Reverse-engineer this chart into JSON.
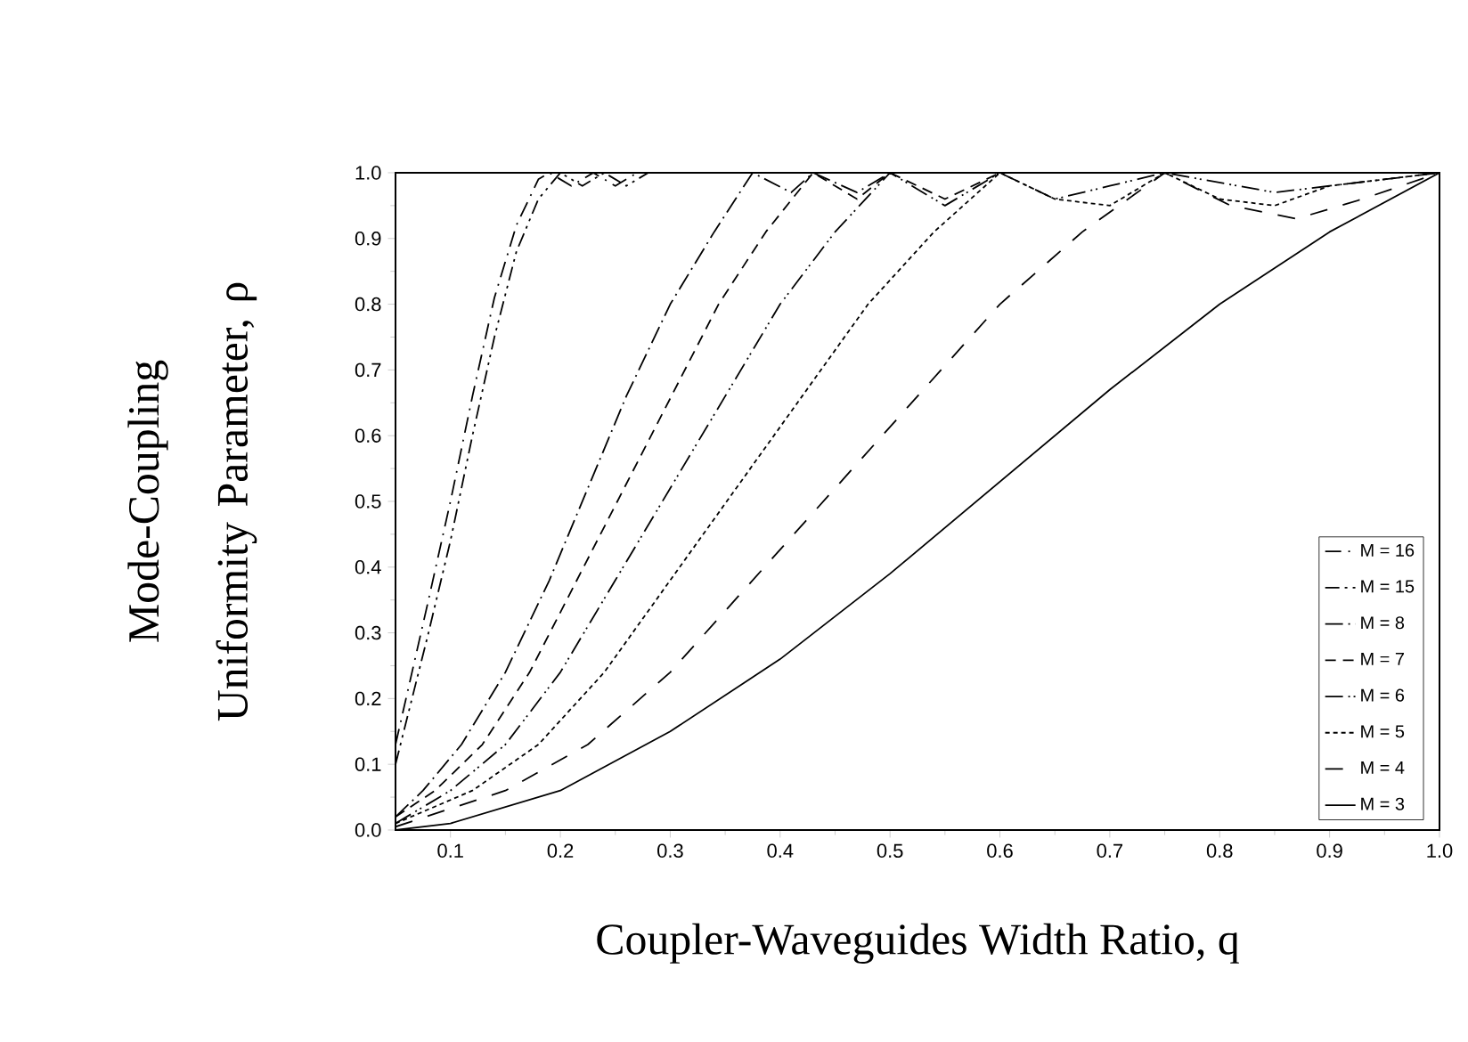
{
  "chart_data": {
    "type": "line",
    "xlabel": "Coupler-Waveguides Width Ratio, q",
    "ylabel": "Mode-Coupling Uniformity Parameter, ρ",
    "xlim": [
      0.05,
      1.0
    ],
    "ylim": [
      0,
      1.0
    ],
    "xticks": [
      0.1,
      0.2,
      0.3,
      0.4,
      0.5,
      0.6,
      0.7,
      0.8,
      0.9,
      {
        "value": 1.0,
        "label": "1.0"
      }
    ],
    "yticks": [
      {
        "value": 0,
        "label": "0.0"
      },
      0.1,
      0.2,
      0.3,
      0.4,
      0.5,
      0.6,
      0.7,
      0.8,
      0.9,
      {
        "value": 1.0,
        "label": "1.0"
      }
    ],
    "grid": false,
    "legend": "bottom right",
    "marker": "none",
    "series": [
      {
        "name": "M = 16",
        "color": "#000000",
        "line_style": "dashdotted",
        "x": [
          0.05,
          0.08,
          0.1,
          0.12,
          0.14,
          0.16,
          0.18,
          0.19,
          0.21,
          0.23,
          0.25,
          0.27,
          1.0
        ],
        "values": [
          0.13,
          0.35,
          0.5,
          0.66,
          0.81,
          0.92,
          0.99,
          1.0,
          0.98,
          1.0,
          0.98,
          1.0,
          1.0
        ]
      },
      {
        "name": "M = 15",
        "color": "#000000",
        "line_style": "dashdotdotted",
        "x": [
          0.05,
          0.08,
          0.1,
          0.12,
          0.14,
          0.16,
          0.18,
          0.2,
          0.22,
          0.24,
          0.26,
          0.28,
          1.0
        ],
        "values": [
          0.1,
          0.3,
          0.44,
          0.6,
          0.75,
          0.88,
          0.96,
          1.0,
          0.98,
          1.0,
          0.98,
          1.0,
          1.0
        ]
      },
      {
        "name": "M = 8",
        "color": "#000000",
        "line_style": "longdashdot",
        "x": [
          0.05,
          0.075,
          0.11,
          0.15,
          0.19,
          0.225,
          0.26,
          0.3,
          0.34,
          0.375,
          0.41,
          0.43,
          0.47,
          0.5,
          1.0
        ],
        "values": [
          0.02,
          0.06,
          0.13,
          0.24,
          0.38,
          0.52,
          0.66,
          0.8,
          0.91,
          1.0,
          0.97,
          1.0,
          0.97,
          1.0,
          1.0
        ]
      },
      {
        "name": "M = 7",
        "color": "#000000",
        "line_style": "dashed",
        "x": [
          0.05,
          0.086,
          0.129,
          0.172,
          0.215,
          0.258,
          0.301,
          0.344,
          0.387,
          0.43,
          0.47,
          0.5,
          0.55,
          0.6,
          1.0
        ],
        "values": [
          0.02,
          0.06,
          0.13,
          0.24,
          0.38,
          0.52,
          0.66,
          0.8,
          0.91,
          1.0,
          0.96,
          1.0,
          0.96,
          1.0,
          1.0
        ]
      },
      {
        "name": "M = 6",
        "color": "#000000",
        "line_style": "longdashdotdot",
        "x": [
          0.05,
          0.1,
          0.15,
          0.2,
          0.25,
          0.3,
          0.35,
          0.4,
          0.45,
          0.5,
          0.55,
          0.6,
          0.65,
          0.7,
          0.75,
          0.85,
          1.0
        ],
        "values": [
          0.01,
          0.06,
          0.13,
          0.24,
          0.38,
          0.52,
          0.66,
          0.8,
          0.91,
          1.0,
          0.95,
          1.0,
          0.96,
          0.98,
          1.0,
          0.97,
          1.0
        ]
      },
      {
        "name": "M = 5",
        "color": "#000000",
        "line_style": "dotted",
        "x": [
          0.05,
          0.12,
          0.18,
          0.24,
          0.3,
          0.36,
          0.42,
          0.48,
          0.54,
          0.6,
          0.65,
          0.7,
          0.75,
          0.8,
          0.85,
          0.9,
          1.0
        ],
        "values": [
          0.01,
          0.06,
          0.13,
          0.24,
          0.38,
          0.52,
          0.66,
          0.8,
          0.91,
          1.0,
          0.96,
          0.95,
          1.0,
          0.96,
          0.95,
          0.98,
          1.0
        ]
      },
      {
        "name": "M = 4",
        "color": "#000000",
        "line_style": "longdashed",
        "x": [
          0.05,
          0.15,
          0.225,
          0.3,
          0.375,
          0.45,
          0.525,
          0.6,
          0.675,
          0.75,
          0.81,
          0.87,
          0.93,
          1.0
        ],
        "values": [
          0.005,
          0.06,
          0.13,
          0.24,
          0.38,
          0.52,
          0.66,
          0.8,
          0.91,
          1.0,
          0.95,
          0.93,
          0.96,
          1.0
        ]
      },
      {
        "name": "M = 3",
        "color": "#000000",
        "line_style": "solid",
        "x": [
          0.05,
          0.1,
          0.2,
          0.3,
          0.4,
          0.5,
          0.6,
          0.7,
          0.8,
          0.9,
          1.0
        ],
        "values": [
          0.0,
          0.01,
          0.06,
          0.15,
          0.26,
          0.39,
          0.53,
          0.67,
          0.8,
          0.91,
          1.0
        ]
      }
    ]
  }
}
